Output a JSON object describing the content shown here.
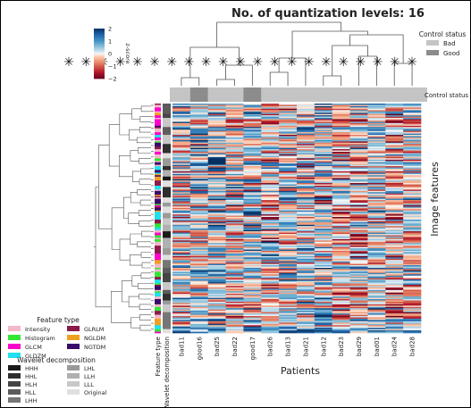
{
  "chart_data": {
    "type": "heatmap",
    "title": "No. of quantization levels: 16",
    "xlabel": "Patients",
    "ylabel": "Image features",
    "colorbar": {
      "label": "z-score",
      "ticks": [
        "2",
        "1",
        "0",
        "−1",
        "−2"
      ],
      "range": [
        -2,
        2
      ],
      "colors": {
        "low": "#67001f",
        "mid": "#f7f7f7",
        "high": "#053061"
      }
    },
    "columns": [
      "bad11",
      "good16",
      "bad25",
      "bad22",
      "good17",
      "bad26",
      "bad13",
      "bad21",
      "bad12",
      "bad23",
      "bad29",
      "bad01",
      "bad24",
      "bad28"
    ],
    "control_status": [
      "Bad",
      "Good",
      "Bad",
      "Bad",
      "Good",
      "Bad",
      "Bad",
      "Bad",
      "Bad",
      "Bad",
      "Bad",
      "Bad",
      "Bad",
      "Bad"
    ],
    "column_markers": [
      "✳",
      "✳",
      "✳",
      "✳",
      "✳",
      "✳",
      "✳",
      "✳",
      "✳",
      "✳",
      "✳",
      "✳",
      "✳",
      "✳",
      "✳",
      "✳",
      "✳",
      "✳",
      "✳",
      "✳",
      "✳"
    ],
    "row_annotation_labels": [
      "Feature type",
      "Wavelet decomposition"
    ],
    "column_annotation_label": "Control status",
    "legends": {
      "control_status": {
        "title": "Control status",
        "items": [
          {
            "label": "Bad",
            "color": "#c4c4c4"
          },
          {
            "label": "Good",
            "color": "#8c8c8c"
          }
        ]
      },
      "feature_type": {
        "title": "Feature type",
        "items": [
          {
            "label": "Intensity",
            "color": "#f4b6c8"
          },
          {
            "label": "GLRLM",
            "color": "#8b1a4a"
          },
          {
            "label": "Histogram",
            "color": "#33e633"
          },
          {
            "label": "NGLDM",
            "color": "#f0a020"
          },
          {
            "label": "GLCM",
            "color": "#ff00cc"
          },
          {
            "label": "NGTDM",
            "color": "#3a0a6a"
          },
          {
            "label": "GLDZM",
            "color": "#1fe0f0"
          }
        ]
      },
      "wavelet_decomposition": {
        "title": "Wavelet decomposition",
        "items": [
          {
            "label": "HHH",
            "color": "#1a1a1a"
          },
          {
            "label": "LHL",
            "color": "#9a9a9a"
          },
          {
            "label": "HHL",
            "color": "#2e2e2e"
          },
          {
            "label": "LLH",
            "color": "#b0b0b0"
          },
          {
            "label": "HLH",
            "color": "#454545"
          },
          {
            "label": "LLL",
            "color": "#c8c8c8"
          },
          {
            "label": "HLL",
            "color": "#5c5c5c"
          },
          {
            "label": "Original",
            "color": "#e0e0e0"
          },
          {
            "label": "LHH",
            "color": "#767676"
          }
        ]
      }
    },
    "feature_rows": 176,
    "grid": false
  }
}
